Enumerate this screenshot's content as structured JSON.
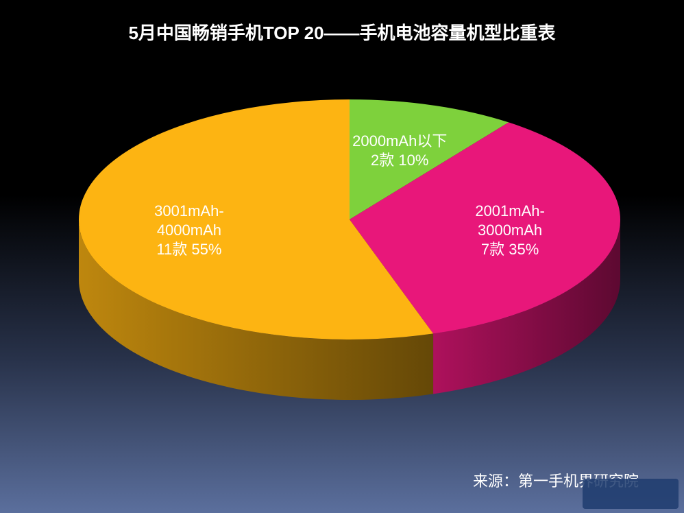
{
  "chart_data": {
    "type": "pie",
    "title": "5月中国畅销手机TOP 20——手机电池容量机型比重表",
    "categories": [
      "2000mAh以下",
      "2001mAh-3000mAh",
      "3001mAh-4000mAh"
    ],
    "values": [
      10,
      35,
      55
    ],
    "value_labels": [
      "2款 10%",
      "7款 35%",
      "11款 55%"
    ],
    "colors": [
      "#7ed13c",
      "#e8177a",
      "#fdb412"
    ],
    "source": "来源：第一手机界研究院"
  }
}
